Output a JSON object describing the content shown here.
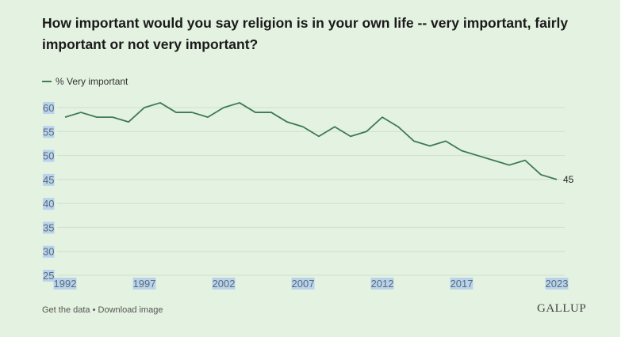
{
  "title": "How important would you say religion is in your own life -- very important, fairly important or not very important?",
  "footer": {
    "get_data": "Get the data",
    "separator": " • ",
    "download": "Download image"
  },
  "logo": "GALLUP",
  "colors": {
    "background": "#e4f2e1",
    "line": "#3e7a52",
    "tick_highlight": "#b9d3ea"
  },
  "chart_data": {
    "type": "line",
    "title": "How important would you say religion is in your own life -- very important, fairly important or not very important?",
    "legend": "top-left",
    "grid": true,
    "ylim": [
      25,
      60
    ],
    "xlim": [
      1992,
      2023
    ],
    "yticks": [
      60,
      55,
      50,
      45,
      40,
      35,
      30,
      25
    ],
    "xticks": [
      1992,
      1997,
      2002,
      2007,
      2012,
      2017,
      2023
    ],
    "end_label": "45",
    "series": [
      {
        "name": "% Very important",
        "x": [
          1992,
          1993,
          1994,
          1995,
          1996,
          1997,
          1998,
          1999,
          2000,
          2001,
          2002,
          2003,
          2004,
          2005,
          2006,
          2007,
          2008,
          2009,
          2010,
          2011,
          2012,
          2013,
          2014,
          2015,
          2016,
          2017,
          2018,
          2019,
          2020,
          2021,
          2022,
          2023
        ],
        "values": [
          58,
          59,
          58,
          58,
          57,
          60,
          61,
          59,
          59,
          58,
          60,
          61,
          59,
          59,
          57,
          56,
          54,
          56,
          54,
          55,
          58,
          56,
          53,
          52,
          53,
          51,
          50,
          49,
          48,
          49,
          46,
          45
        ]
      }
    ]
  }
}
